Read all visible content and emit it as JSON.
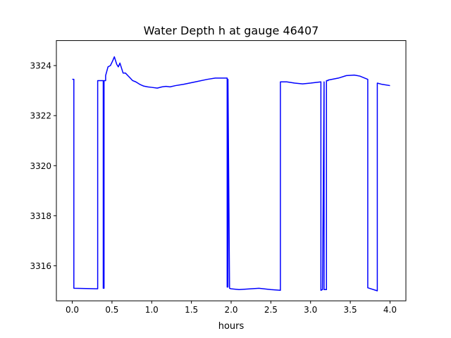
{
  "chart_data": {
    "type": "line",
    "title": "Water Depth h at gauge 46407",
    "xlabel": "hours",
    "ylabel": "",
    "xlim": [
      -0.2,
      4.2
    ],
    "ylim": [
      3314.6,
      3325.0
    ],
    "xticks": [
      0.0,
      0.5,
      1.0,
      1.5,
      2.0,
      2.5,
      3.0,
      3.5,
      4.0
    ],
    "xtick_labels": [
      "0.0",
      "0.5",
      "1.0",
      "1.5",
      "2.0",
      "2.5",
      "3.0",
      "3.5",
      "4.0"
    ],
    "yticks": [
      3316,
      3318,
      3320,
      3322,
      3324
    ],
    "ytick_labels": [
      "3316",
      "3318",
      "3320",
      "3322",
      "3324"
    ],
    "grid": false,
    "series": [
      {
        "color": "#0000ff",
        "x": [
          0.0,
          0.02,
          0.02,
          0.32,
          0.32,
          0.39,
          0.39,
          0.4,
          0.4,
          0.42,
          0.42,
          0.45,
          0.48,
          0.51,
          0.53,
          0.56,
          0.58,
          0.6,
          0.62,
          0.64,
          0.67,
          0.7,
          0.73,
          0.76,
          0.8,
          0.85,
          0.9,
          0.95,
          1.0,
          1.07,
          1.13,
          1.18,
          1.23,
          1.3,
          1.4,
          1.55,
          1.7,
          1.8,
          1.95,
          1.95,
          1.96,
          1.96,
          1.98,
          2.0,
          2.1,
          2.2,
          2.35,
          2.5,
          2.62,
          2.62,
          2.7,
          2.8,
          2.9,
          3.0,
          3.13,
          3.13,
          3.15,
          3.17,
          3.17,
          3.2,
          3.2,
          3.22,
          3.22,
          3.35,
          3.45,
          3.55,
          3.62,
          3.72,
          3.72,
          3.84,
          3.84,
          3.9,
          4.0
        ],
        "y": [
          3323.45,
          3323.45,
          3315.1,
          3315.08,
          3323.4,
          3323.4,
          3315.1,
          3315.1,
          3323.4,
          3323.4,
          3323.6,
          3323.95,
          3324.0,
          3324.2,
          3324.35,
          3324.05,
          3323.95,
          3324.1,
          3323.9,
          3323.7,
          3323.7,
          3323.6,
          3323.5,
          3323.4,
          3323.35,
          3323.25,
          3323.18,
          3323.15,
          3323.13,
          3323.1,
          3323.15,
          3323.17,
          3323.15,
          3323.2,
          3323.25,
          3323.35,
          3323.45,
          3323.5,
          3323.5,
          3315.15,
          3315.15,
          3323.45,
          3315.1,
          3315.08,
          3315.05,
          3315.07,
          3315.1,
          3315.05,
          3315.02,
          3323.35,
          3323.35,
          3323.3,
          3323.27,
          3323.3,
          3323.35,
          3315.02,
          3315.05,
          3323.35,
          3315.05,
          3315.05,
          3323.4,
          3323.4,
          3323.42,
          3323.5,
          3323.6,
          3323.62,
          3323.58,
          3323.45,
          3315.12,
          3315.0,
          3323.3,
          3323.25,
          3323.2
        ]
      }
    ]
  }
}
